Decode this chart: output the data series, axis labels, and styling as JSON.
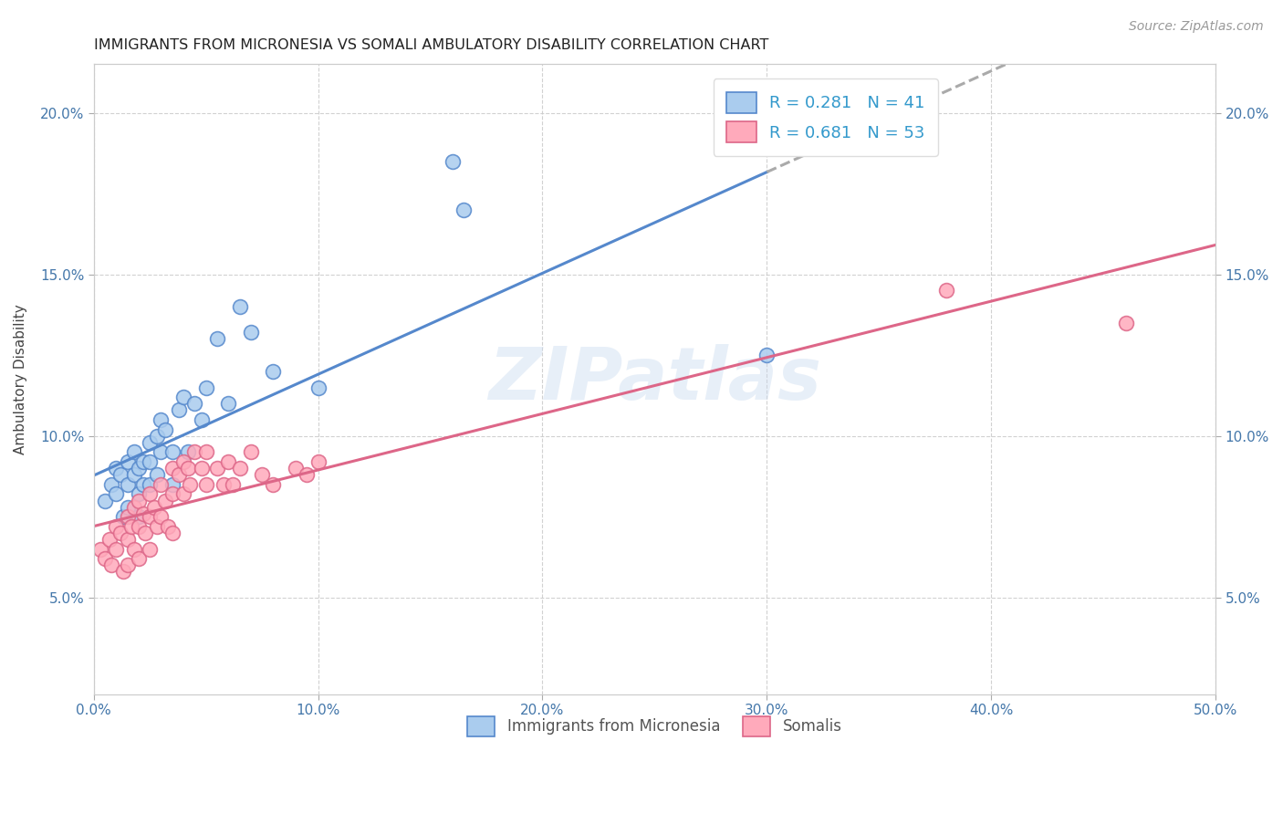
{
  "title": "IMMIGRANTS FROM MICRONESIA VS SOMALI AMBULATORY DISABILITY CORRELATION CHART",
  "source": "Source: ZipAtlas.com",
  "ylabel": "Ambulatory Disability",
  "xlim": [
    0.0,
    0.5
  ],
  "ylim": [
    0.02,
    0.215
  ],
  "xticks": [
    0.0,
    0.1,
    0.2,
    0.3,
    0.4,
    0.5
  ],
  "xticklabels": [
    "0.0%",
    "10.0%",
    "20.0%",
    "30.0%",
    "40.0%",
    "50.0%"
  ],
  "ytick_positions": [
    0.05,
    0.1,
    0.15,
    0.2
  ],
  "ytick_labels": [
    "5.0%",
    "10.0%",
    "15.0%",
    "20.0%"
  ],
  "color_micro": "#aaccee",
  "color_micro_edge": "#5588cc",
  "color_somali": "#ffaabb",
  "color_somali_edge": "#dd6688",
  "color_line_micro": "#5588cc",
  "color_line_somali": "#dd6688",
  "watermark_text": "ZIPatlas",
  "micro_x": [
    0.005,
    0.008,
    0.01,
    0.01,
    0.012,
    0.013,
    0.015,
    0.015,
    0.015,
    0.018,
    0.018,
    0.02,
    0.02,
    0.02,
    0.022,
    0.022,
    0.025,
    0.025,
    0.025,
    0.028,
    0.028,
    0.03,
    0.03,
    0.032,
    0.035,
    0.035,
    0.038,
    0.04,
    0.042,
    0.045,
    0.048,
    0.05,
    0.055,
    0.06,
    0.065,
    0.07,
    0.08,
    0.1,
    0.16,
    0.165,
    0.3
  ],
  "micro_y": [
    0.08,
    0.085,
    0.09,
    0.082,
    0.088,
    0.075,
    0.092,
    0.085,
    0.078,
    0.095,
    0.088,
    0.082,
    0.09,
    0.075,
    0.092,
    0.085,
    0.098,
    0.092,
    0.085,
    0.1,
    0.088,
    0.105,
    0.095,
    0.102,
    0.095,
    0.085,
    0.108,
    0.112,
    0.095,
    0.11,
    0.105,
    0.115,
    0.13,
    0.11,
    0.14,
    0.132,
    0.12,
    0.115,
    0.185,
    0.17,
    0.125
  ],
  "somali_x": [
    0.003,
    0.005,
    0.007,
    0.008,
    0.01,
    0.01,
    0.012,
    0.013,
    0.015,
    0.015,
    0.015,
    0.017,
    0.018,
    0.018,
    0.02,
    0.02,
    0.02,
    0.022,
    0.023,
    0.025,
    0.025,
    0.025,
    0.027,
    0.028,
    0.03,
    0.03,
    0.032,
    0.033,
    0.035,
    0.035,
    0.035,
    0.038,
    0.04,
    0.04,
    0.042,
    0.043,
    0.045,
    0.048,
    0.05,
    0.05,
    0.055,
    0.058,
    0.06,
    0.062,
    0.065,
    0.07,
    0.075,
    0.08,
    0.09,
    0.095,
    0.1,
    0.38,
    0.46
  ],
  "somali_y": [
    0.065,
    0.062,
    0.068,
    0.06,
    0.072,
    0.065,
    0.07,
    0.058,
    0.075,
    0.068,
    0.06,
    0.072,
    0.078,
    0.065,
    0.08,
    0.072,
    0.062,
    0.076,
    0.07,
    0.082,
    0.075,
    0.065,
    0.078,
    0.072,
    0.085,
    0.075,
    0.08,
    0.072,
    0.09,
    0.082,
    0.07,
    0.088,
    0.092,
    0.082,
    0.09,
    0.085,
    0.095,
    0.09,
    0.095,
    0.085,
    0.09,
    0.085,
    0.092,
    0.085,
    0.09,
    0.095,
    0.088,
    0.085,
    0.09,
    0.088,
    0.092,
    0.145,
    0.135
  ]
}
